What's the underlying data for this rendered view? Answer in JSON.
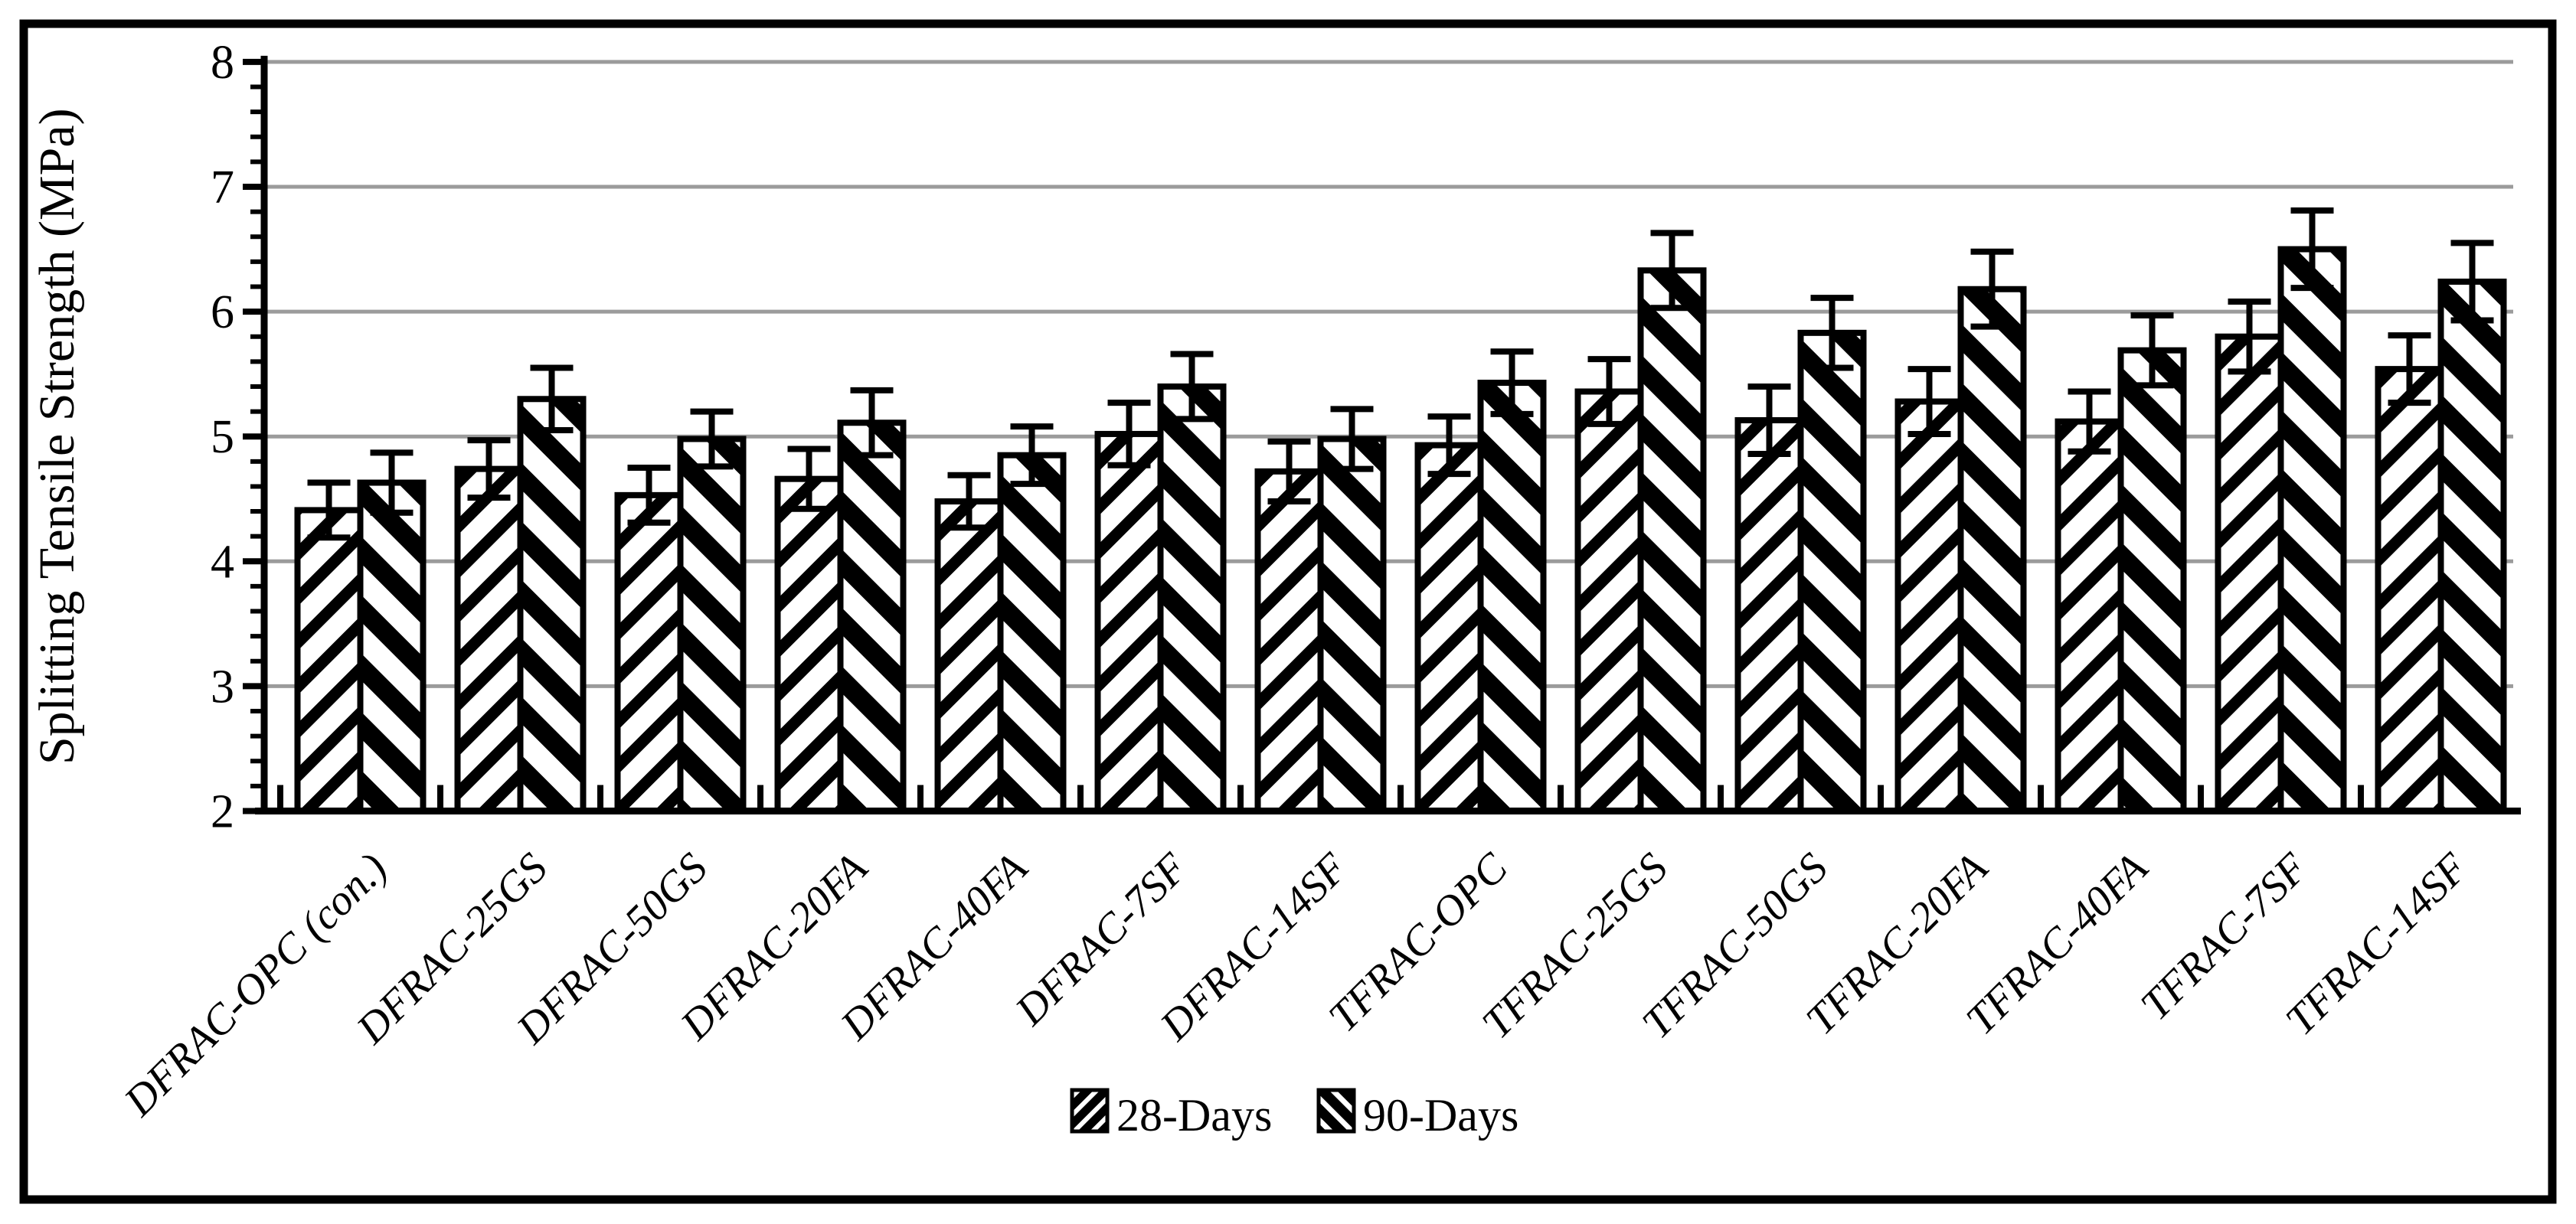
{
  "figure": {
    "background": "#ffffff",
    "border_color": "#000000"
  },
  "chart_data": {
    "type": "bar",
    "title": "",
    "xlabel": "",
    "ylabel": "Splitting Tensile Strength (MPa)",
    "ylim": [
      2,
      8
    ],
    "y_major_ticks": [
      2,
      3,
      4,
      5,
      6,
      7,
      8
    ],
    "y_minor_step": 0.2,
    "grid": "horizontal-major",
    "legend_position": "bottom-center",
    "categories": [
      "DFRAC-OPC (con.)",
      "DFRAC-25GS",
      "DFRAC-50GS",
      "DFRAC-20FA",
      "DFRAC-40FA",
      "DFRAC-7SF",
      "DFRAC-14SF",
      "TFRAC-OPC",
      "TFRAC-25GS",
      "TFRAC-50GS",
      "TFRAC-20FA",
      "TFRAC-40FA",
      "TFRAC-7SF",
      "TFRAC-14SF"
    ],
    "series": [
      {
        "name": "28-Days",
        "hatch": "forward-diagonal",
        "values": [
          4.41,
          4.74,
          4.53,
          4.66,
          4.48,
          5.02,
          4.72,
          4.93,
          5.36,
          5.13,
          5.28,
          5.12,
          5.8,
          5.54
        ],
        "errors": [
          0.22,
          0.23,
          0.22,
          0.24,
          0.21,
          0.25,
          0.24,
          0.23,
          0.26,
          0.27,
          0.26,
          0.24,
          0.28,
          0.27
        ]
      },
      {
        "name": "90-Days",
        "hatch": "backward-diagonal",
        "values": [
          4.63,
          5.3,
          4.98,
          5.11,
          4.85,
          5.4,
          4.98,
          5.43,
          6.33,
          5.83,
          6.18,
          5.69,
          6.5,
          6.24
        ],
        "errors": [
          0.24,
          0.25,
          0.22,
          0.26,
          0.23,
          0.26,
          0.24,
          0.25,
          0.3,
          0.28,
          0.3,
          0.28,
          0.31,
          0.31
        ]
      }
    ],
    "colors": {
      "bar_fill": "#ffffff",
      "hatch": "#000000",
      "bar_stroke": "#000000",
      "gridline": "#9b9b9b",
      "axis": "#000000",
      "text": "#000000",
      "background": "#ffffff"
    }
  }
}
